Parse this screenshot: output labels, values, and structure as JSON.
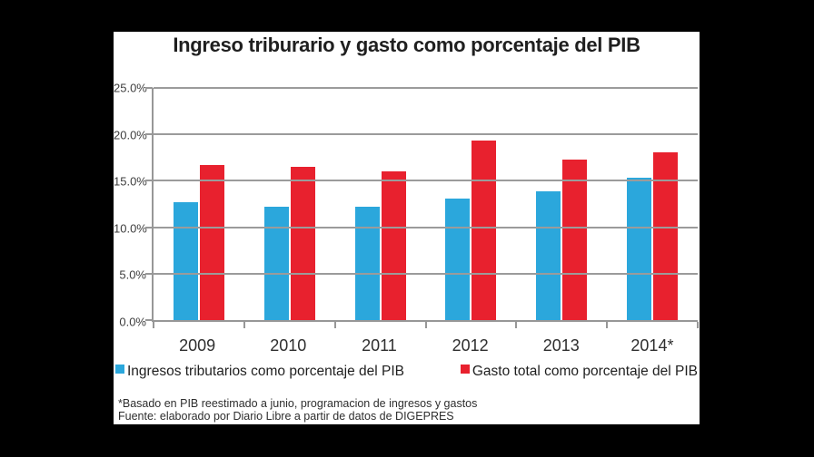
{
  "chart_data": {
    "type": "bar",
    "title": "Ingreso triburario y gasto como porcentaje del PIB",
    "categories": [
      "2009",
      "2010",
      "2011",
      "2012",
      "2013",
      "2014*"
    ],
    "series": [
      {
        "name": "Ingresos tributarios como porcentaje del PIB",
        "color": "#2BA7DC",
        "values": [
          12.7,
          12.2,
          12.2,
          13.1,
          13.9,
          15.3
        ]
      },
      {
        "name": "Gasto total como porcentaje del PIB",
        "color": "#E8212E",
        "values": [
          16.7,
          16.5,
          16.0,
          19.3,
          17.3,
          18.1
        ]
      }
    ],
    "xlabel": "",
    "ylabel": "",
    "ylim": [
      0,
      25
    ],
    "ytick_step": 5,
    "ytick_labels": [
      "0.0%",
      "5.0%",
      "10.0%",
      "15.0%",
      "20.0%",
      "25.0%"
    ],
    "grid": true,
    "legend_position": "bottom"
  },
  "colors": {
    "page_bg": "#000000",
    "card_bg": "#ffffff",
    "grid": "#9b9b9b",
    "axis": "#979797",
    "title_text": "#1f1f1f"
  },
  "footnotes": {
    "line1": "*Basado en PIB reestimado a junio, programacion de ingresos y gastos",
    "line2": "Fuente: elaborado por Diario Libre a partir de datos de DIGEPRES"
  }
}
